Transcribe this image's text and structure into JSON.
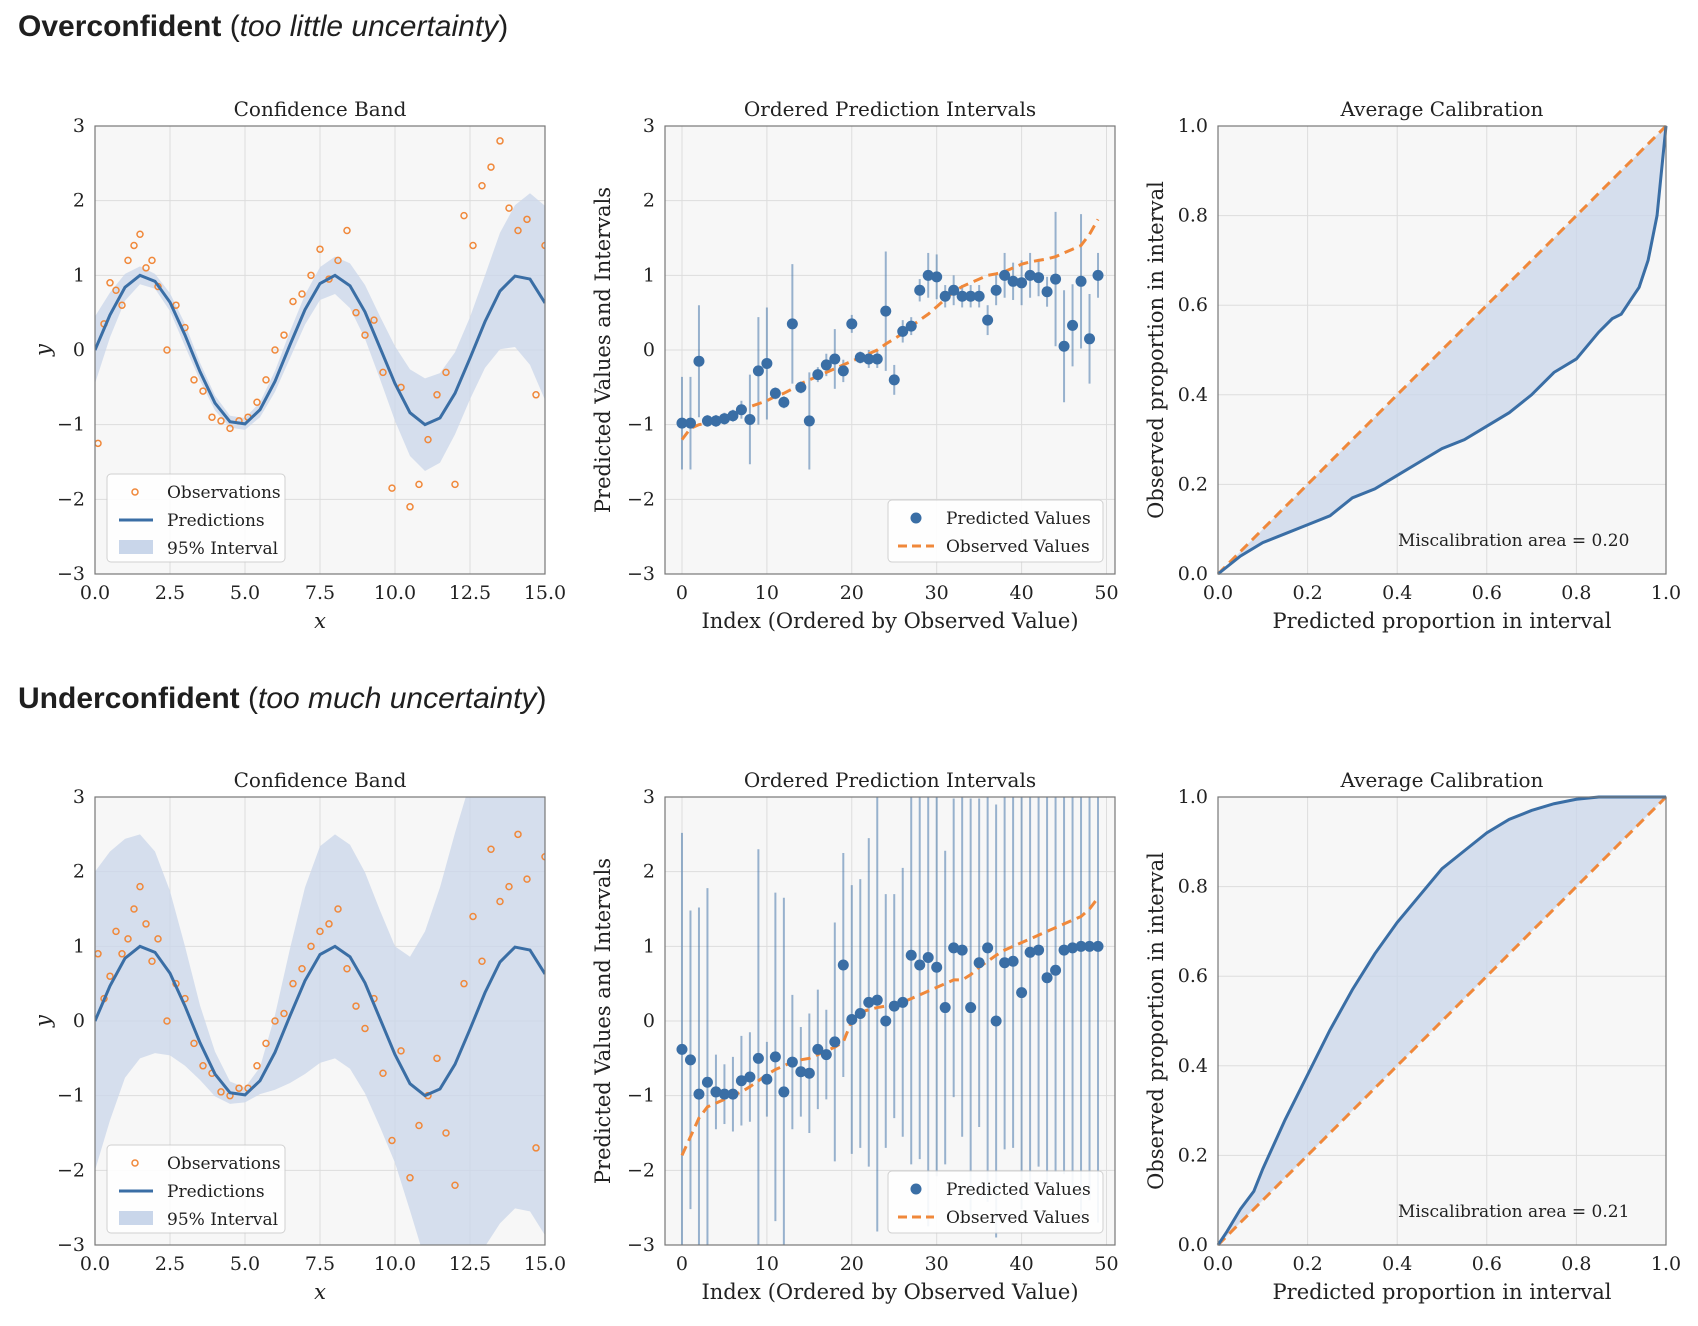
{
  "headings": [
    {
      "strong": "Overconfident",
      "open": " (",
      "italic": "too little uncertainty",
      "close": ")"
    },
    {
      "strong": "Underconfident",
      "open": " (",
      "italic": "too much uncertainty",
      "close": ")"
    }
  ],
  "colors": {
    "prediction": "#3a6ea5",
    "observation": "#f0883a",
    "band": "#c9d6ea",
    "panel_bg": "#f7f7f7",
    "grid": "#dddddd"
  },
  "chart_data": [
    {
      "type": "scatter",
      "panel": "confidence-band",
      "group": "overconfident",
      "title": "Confidence Band",
      "xlabel": "x",
      "ylabel": "y",
      "xlim": [
        0,
        15
      ],
      "ylim": [
        -3,
        3
      ],
      "xticks": [
        "0.0",
        "2.5",
        "5.0",
        "7.5",
        "10.0",
        "12.5",
        "15.0"
      ],
      "yticks": [
        "−3",
        "−2",
        "−1",
        "0",
        "1",
        "2",
        "3"
      ],
      "legend": [
        "Observations",
        "Predictions",
        "95% Interval"
      ],
      "legend_position": "lower-left",
      "prediction": "sin-like curve y ≈ sin(x·2π/6.3), amplitude 1, over x from 0 to 15",
      "prediction_x": [
        0,
        0.5,
        1,
        1.5,
        2,
        2.5,
        3,
        3.5,
        4,
        4.5,
        5,
        5.5,
        6,
        6.5,
        7,
        7.5,
        8,
        8.5,
        9,
        9.5,
        10,
        10.5,
        11,
        11.5,
        12,
        12.5,
        13,
        13.5,
        14,
        14.5,
        15
      ],
      "prediction_y": [
        0,
        0.47,
        0.84,
        1.0,
        0.92,
        0.64,
        0.2,
        -0.29,
        -0.71,
        -0.96,
        -0.99,
        -0.8,
        -0.42,
        0.07,
        0.54,
        0.89,
        1.0,
        0.86,
        0.51,
        0.03,
        -0.45,
        -0.84,
        -1.0,
        -0.91,
        -0.58,
        -0.11,
        0.38,
        0.79,
        0.99,
        0.95,
        0.63
      ],
      "band_halfwidth": [
        0.45,
        0.3,
        0.18,
        0.12,
        0.1,
        0.12,
        0.15,
        0.12,
        0.1,
        0.08,
        0.08,
        0.1,
        0.14,
        0.18,
        0.2,
        0.22,
        0.25,
        0.3,
        0.36,
        0.42,
        0.5,
        0.58,
        0.62,
        0.6,
        0.55,
        0.55,
        0.62,
        0.78,
        0.95,
        1.15,
        1.3
      ],
      "observations_x": [
        0.1,
        0.3,
        0.5,
        0.7,
        0.9,
        1.1,
        1.3,
        1.5,
        1.7,
        1.9,
        2.1,
        2.4,
        2.7,
        3.0,
        3.3,
        3.6,
        3.9,
        4.2,
        4.5,
        4.8,
        5.1,
        5.4,
        5.7,
        6.0,
        6.3,
        6.6,
        6.9,
        7.2,
        7.5,
        7.8,
        8.1,
        8.4,
        8.7,
        9.0,
        9.3,
        9.6,
        9.9,
        10.2,
        10.5,
        10.8,
        11.1,
        11.4,
        11.7,
        12.0,
        12.3,
        12.6,
        12.9,
        13.2,
        13.5,
        13.8,
        14.1,
        14.4,
        14.7,
        15.0
      ],
      "observations_y": [
        -1.25,
        0.35,
        0.9,
        0.8,
        0.6,
        1.2,
        1.4,
        1.55,
        1.1,
        1.2,
        0.85,
        0.0,
        0.6,
        0.3,
        -0.4,
        -0.55,
        -0.9,
        -0.95,
        -1.05,
        -0.95,
        -0.9,
        -0.7,
        -0.4,
        0.0,
        0.2,
        0.65,
        0.75,
        1.0,
        1.35,
        0.95,
        1.2,
        1.6,
        0.5,
        0.2,
        0.4,
        -0.3,
        -1.85,
        -0.5,
        -2.1,
        -1.8,
        -1.2,
        -0.6,
        -0.3,
        -1.8,
        1.8,
        1.4,
        2.2,
        2.45,
        2.8,
        1.9,
        1.6,
        1.75,
        -0.6,
        1.4
      ]
    },
    {
      "type": "scatter",
      "panel": "ordered-intervals",
      "group": "overconfident",
      "title": "Ordered Prediction Intervals",
      "xlabel": "Index (Ordered by Observed Value)",
      "ylabel": "Predicted Values and Intervals",
      "xlim": [
        -2,
        51
      ],
      "ylim": [
        -3,
        3
      ],
      "xticks": [
        "0",
        "10",
        "20",
        "30",
        "40",
        "50"
      ],
      "yticks": [
        "−3",
        "−2",
        "−1",
        "0",
        "1",
        "2",
        "3"
      ],
      "legend": [
        "Predicted Values",
        "Observed Values"
      ],
      "legend_position": "lower-right",
      "predicted": [
        -0.98,
        -0.98,
        -0.15,
        -0.95,
        -0.95,
        -0.92,
        -0.88,
        -0.8,
        -0.93,
        -0.28,
        -0.18,
        -0.58,
        -0.7,
        0.35,
        -0.5,
        -0.95,
        -0.33,
        -0.2,
        -0.12,
        -0.28,
        0.35,
        -0.1,
        -0.12,
        -0.12,
        0.52,
        -0.4,
        0.25,
        0.32,
        0.8,
        1.0,
        0.98,
        0.72,
        0.8,
        0.72,
        0.72,
        0.72,
        0.4,
        0.8,
        1.0,
        0.92,
        0.9,
        1.0,
        0.97,
        0.78,
        0.95,
        0.05,
        0.33,
        0.92,
        0.15,
        1.0
      ],
      "interval_halfwidth": [
        0.62,
        0.62,
        0.75,
        0.08,
        0.08,
        0.08,
        0.08,
        0.12,
        0.6,
        0.72,
        0.75,
        0.08,
        0.08,
        0.8,
        0.08,
        0.65,
        0.1,
        0.15,
        0.4,
        0.15,
        0.12,
        0.08,
        0.12,
        0.12,
        0.8,
        0.2,
        0.15,
        0.12,
        0.15,
        0.3,
        0.3,
        0.15,
        0.2,
        0.15,
        0.15,
        0.15,
        0.2,
        0.2,
        0.3,
        0.25,
        0.3,
        0.3,
        0.25,
        0.2,
        0.9,
        0.75,
        0.55,
        0.9,
        0.6,
        0.3
      ],
      "observed": [
        -1.2,
        -1.05,
        -1.0,
        -0.98,
        -0.95,
        -0.9,
        -0.85,
        -0.8,
        -0.76,
        -0.72,
        -0.68,
        -0.62,
        -0.58,
        -0.52,
        -0.45,
        -0.4,
        -0.35,
        -0.3,
        -0.25,
        -0.2,
        -0.15,
        -0.1,
        -0.05,
        0.0,
        0.08,
        0.15,
        0.22,
        0.32,
        0.4,
        0.48,
        0.58,
        0.68,
        0.78,
        0.85,
        0.9,
        0.95,
        1.0,
        1.02,
        1.05,
        1.1,
        1.15,
        1.18,
        1.2,
        1.22,
        1.25,
        1.3,
        1.35,
        1.4,
        1.55,
        1.75
      ]
    },
    {
      "type": "line",
      "panel": "calibration",
      "group": "overconfident",
      "title": "Average Calibration",
      "xlabel": "Predicted proportion in interval",
      "ylabel": "Observed proportion in interval",
      "xlim": [
        0,
        1
      ],
      "ylim": [
        0,
        1
      ],
      "xticks": [
        "0.0",
        "0.2",
        "0.4",
        "0.6",
        "0.8",
        "1.0"
      ],
      "yticks": [
        "0.0",
        "0.2",
        "0.4",
        "0.6",
        "0.8",
        "1.0"
      ],
      "annotation": "Miscalibration area = 0.20",
      "curve_x": [
        0,
        0.05,
        0.1,
        0.15,
        0.2,
        0.25,
        0.3,
        0.35,
        0.4,
        0.45,
        0.5,
        0.55,
        0.6,
        0.65,
        0.7,
        0.75,
        0.8,
        0.85,
        0.88,
        0.9,
        0.92,
        0.94,
        0.96,
        0.98,
        1.0
      ],
      "curve_y": [
        0,
        0.04,
        0.07,
        0.09,
        0.11,
        0.13,
        0.17,
        0.19,
        0.22,
        0.25,
        0.28,
        0.3,
        0.33,
        0.36,
        0.4,
        0.45,
        0.48,
        0.54,
        0.57,
        0.58,
        0.61,
        0.64,
        0.7,
        0.8,
        1.0
      ]
    },
    {
      "type": "scatter",
      "panel": "confidence-band",
      "group": "underconfident",
      "title": "Confidence Band",
      "xlabel": "x",
      "ylabel": "y",
      "xlim": [
        0,
        15
      ],
      "ylim": [
        -3,
        3
      ],
      "xticks": [
        "0.0",
        "2.5",
        "5.0",
        "7.5",
        "10.0",
        "12.5",
        "15.0"
      ],
      "yticks": [
        "−3",
        "−2",
        "−1",
        "0",
        "1",
        "2",
        "3"
      ],
      "legend": [
        "Observations",
        "Predictions",
        "95% Interval"
      ],
      "legend_position": "lower-left",
      "prediction_x": [
        0,
        0.5,
        1,
        1.5,
        2,
        2.5,
        3,
        3.5,
        4,
        4.5,
        5,
        5.5,
        6,
        6.5,
        7,
        7.5,
        8,
        8.5,
        9,
        9.5,
        10,
        10.5,
        11,
        11.5,
        12,
        12.5,
        13,
        13.5,
        14,
        14.5,
        15
      ],
      "prediction_y": [
        0,
        0.47,
        0.84,
        1.0,
        0.92,
        0.64,
        0.2,
        -0.29,
        -0.71,
        -0.96,
        -0.99,
        -0.8,
        -0.42,
        0.07,
        0.54,
        0.89,
        1.0,
        0.86,
        0.51,
        0.03,
        -0.45,
        -0.84,
        -1.0,
        -0.91,
        -0.58,
        -0.11,
        0.38,
        0.79,
        0.99,
        0.95,
        0.63
      ],
      "band_halfwidth": [
        2.0,
        1.8,
        1.6,
        1.5,
        1.35,
        1.1,
        0.8,
        0.5,
        0.3,
        0.15,
        0.1,
        0.18,
        0.5,
        0.9,
        1.25,
        1.45,
        1.5,
        1.5,
        1.48,
        1.45,
        1.45,
        1.7,
        2.2,
        2.7,
        3.1,
        3.3,
        3.4,
        3.5,
        3.5,
        3.5,
        3.5
      ],
      "observations_x": [
        0.1,
        0.3,
        0.5,
        0.7,
        0.9,
        1.1,
        1.3,
        1.5,
        1.7,
        1.9,
        2.1,
        2.4,
        2.7,
        3.0,
        3.3,
        3.6,
        3.9,
        4.2,
        4.5,
        4.8,
        5.1,
        5.4,
        5.7,
        6.0,
        6.3,
        6.6,
        6.9,
        7.2,
        7.5,
        7.8,
        8.1,
        8.4,
        8.7,
        9.0,
        9.3,
        9.6,
        9.9,
        10.2,
        10.5,
        10.8,
        11.1,
        11.4,
        11.7,
        12.0,
        12.3,
        12.6,
        12.9,
        13.2,
        13.5,
        13.8,
        14.1,
        14.4,
        14.7,
        15.0
      ],
      "observations_y": [
        0.9,
        0.3,
        0.6,
        1.2,
        0.9,
        1.1,
        1.5,
        1.8,
        1.3,
        0.8,
        1.1,
        0.0,
        0.5,
        0.3,
        -0.3,
        -0.6,
        -0.7,
        -0.95,
        -1.0,
        -0.9,
        -0.9,
        -0.6,
        -0.3,
        0.0,
        0.1,
        0.5,
        0.7,
        1.0,
        1.2,
        1.3,
        1.5,
        0.7,
        0.2,
        -0.1,
        0.3,
        -0.7,
        -1.6,
        -0.4,
        -2.1,
        -1.4,
        -1.0,
        -0.5,
        -1.5,
        -2.2,
        0.5,
        1.4,
        0.8,
        2.3,
        1.6,
        1.8,
        2.5,
        1.9,
        -1.7,
        2.2
      ]
    },
    {
      "type": "scatter",
      "panel": "ordered-intervals",
      "group": "underconfident",
      "title": "Ordered Prediction Intervals",
      "xlabel": "Index (Ordered by Observed Value)",
      "ylabel": "Predicted Values and Intervals",
      "xlim": [
        -2,
        51
      ],
      "ylim": [
        -3,
        3
      ],
      "xticks": [
        "0",
        "10",
        "20",
        "30",
        "40",
        "50"
      ],
      "yticks": [
        "−3",
        "−2",
        "−1",
        "0",
        "1",
        "2",
        "3"
      ],
      "legend": [
        "Predicted Values",
        "Observed Values"
      ],
      "legend_position": "lower-right",
      "predicted": [
        -0.38,
        -0.52,
        -0.98,
        -0.82,
        -0.95,
        -0.98,
        -0.98,
        -0.8,
        -0.75,
        -0.5,
        -0.78,
        -0.48,
        -0.95,
        -0.55,
        -0.68,
        -0.7,
        -0.38,
        -0.45,
        -0.28,
        0.75,
        0.02,
        0.1,
        0.25,
        0.28,
        0.0,
        0.2,
        0.25,
        0.88,
        0.75,
        0.85,
        0.72,
        0.18,
        0.98,
        0.95,
        0.18,
        0.78,
        0.98,
        0.0,
        0.78,
        0.8,
        0.38,
        0.92,
        0.95,
        0.58,
        0.68,
        0.95,
        0.98,
        1.0,
        1.0,
        1.0
      ],
      "interval_halfwidth": [
        2.9,
        2.0,
        2.5,
        2.6,
        0.5,
        0.4,
        0.5,
        0.6,
        0.6,
        2.8,
        0.5,
        2.2,
        2.6,
        0.9,
        0.6,
        0.8,
        0.8,
        0.6,
        1.6,
        1.5,
        1.8,
        1.8,
        2.2,
        3.1,
        1.7,
        1.5,
        1.8,
        2.8,
        2.6,
        3.6,
        2.8,
        2.1,
        2.0,
        2.5,
        2.8,
        2.2,
        3.4,
        2.9,
        2.5,
        2.5,
        2.9,
        3.2,
        2.9,
        2.8,
        2.7,
        3.0,
        3.2,
        3.7,
        3.4,
        3.7
      ],
      "observed": [
        -1.8,
        -1.55,
        -1.3,
        -1.15,
        -1.1,
        -1.05,
        -1.0,
        -0.95,
        -0.88,
        -0.8,
        -0.72,
        -0.65,
        -0.6,
        -0.55,
        -0.52,
        -0.5,
        -0.45,
        -0.4,
        -0.35,
        -0.28,
        0.0,
        0.12,
        0.15,
        0.18,
        0.2,
        0.22,
        0.25,
        0.3,
        0.35,
        0.4,
        0.45,
        0.5,
        0.55,
        0.55,
        0.62,
        0.72,
        0.8,
        0.88,
        0.95,
        1.0,
        1.05,
        1.1,
        1.15,
        1.2,
        1.25,
        1.3,
        1.35,
        1.4,
        1.5,
        1.65
      ]
    },
    {
      "type": "line",
      "panel": "calibration",
      "group": "underconfident",
      "title": "Average Calibration",
      "xlabel": "Predicted proportion in interval",
      "ylabel": "Observed proportion in interval",
      "xlim": [
        0,
        1
      ],
      "ylim": [
        0,
        1
      ],
      "xticks": [
        "0.0",
        "0.2",
        "0.4",
        "0.6",
        "0.8",
        "1.0"
      ],
      "yticks": [
        "0.0",
        "0.2",
        "0.4",
        "0.6",
        "0.8",
        "1.0"
      ],
      "annotation": "Miscalibration area = 0.21",
      "curve_x": [
        0,
        0.02,
        0.05,
        0.08,
        0.1,
        0.15,
        0.2,
        0.25,
        0.3,
        0.35,
        0.4,
        0.45,
        0.5,
        0.55,
        0.6,
        0.65,
        0.7,
        0.75,
        0.8,
        0.85,
        0.9,
        0.95,
        1.0
      ],
      "curve_y": [
        0,
        0.03,
        0.08,
        0.12,
        0.17,
        0.28,
        0.38,
        0.48,
        0.57,
        0.65,
        0.72,
        0.78,
        0.84,
        0.88,
        0.92,
        0.95,
        0.97,
        0.985,
        0.995,
        1.0,
        1.0,
        1.0,
        1.0
      ]
    }
  ]
}
